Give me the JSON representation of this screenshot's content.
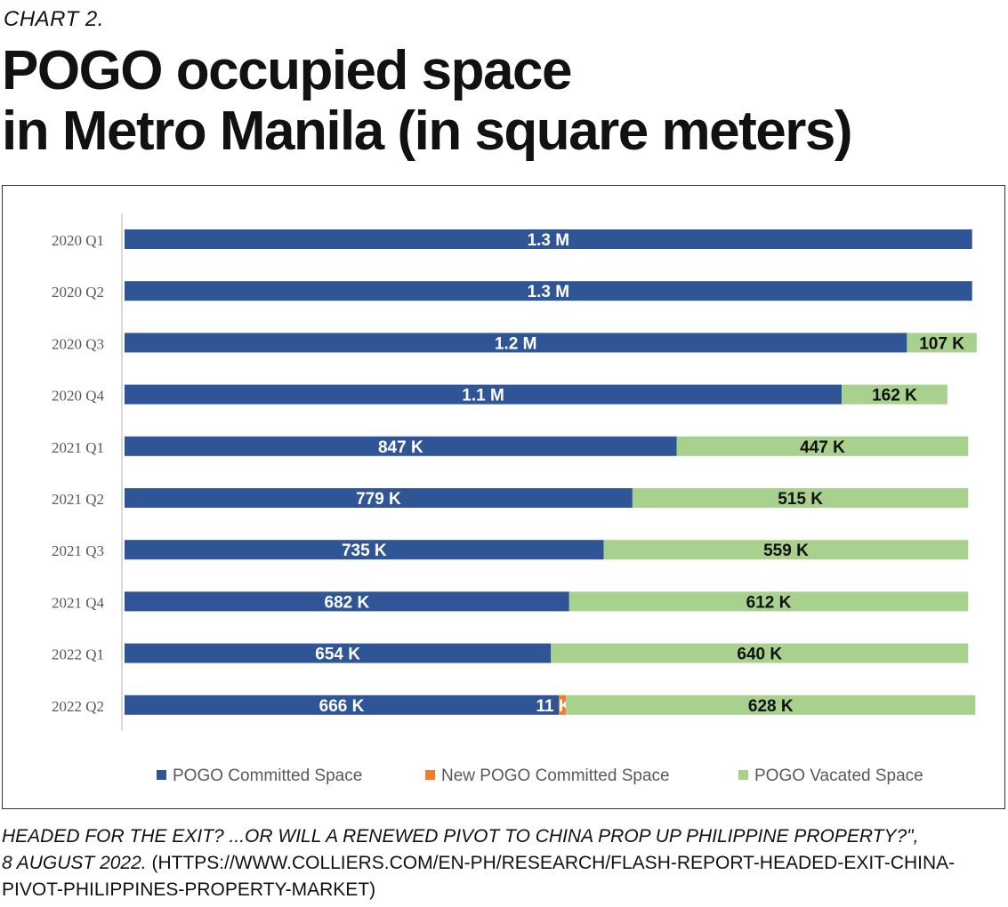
{
  "kicker": "CHART 2.",
  "title_line1": "POGO occupied space",
  "title_line2": "in Metro Manila (in square meters)",
  "source_line1": "HEADED FOR THE EXIT? ...OR WILL A RENEWED PIVOT TO CHINA PROP UP PHILIPPINE PROPERTY?\",",
  "source_line2_italic": "8 AUGUST 2022. ",
  "source_line2_rest": "(HTTPS://WWW.COLLIERS.COM/EN-PH/RESEARCH/FLASH-REPORT-HEADED-EXIT-CHINA-",
  "source_line3": "PIVOT-PHILIPPINES-PROPERTY-MARKET)",
  "chart_data": {
    "type": "bar",
    "orientation": "horizontal",
    "stacked": true,
    "title": "POGO occupied space in Metro Manila (in square meters)",
    "categories": [
      "2020 Q1",
      "2020 Q2",
      "2020 Q3",
      "2020 Q4",
      "2021 Q1",
      "2021 Q2",
      "2021 Q3",
      "2021 Q4",
      "2022 Q1",
      "2022 Q2"
    ],
    "series": [
      {
        "name": "POGO Committed Space",
        "color": "#2f5597",
        "values": [
          1300000,
          1300000,
          1200000,
          1100000,
          847000,
          779000,
          735000,
          682000,
          654000,
          666000
        ],
        "labels": [
          "1.3 M",
          "1.3 M",
          "1.2 M",
          "1.1 M",
          "847 K",
          "779 K",
          "735 K",
          "682 K",
          "654 K",
          "666 K"
        ]
      },
      {
        "name": "New POGO Committed Space",
        "color": "#ed7d31",
        "values": [
          0,
          0,
          0,
          0,
          0,
          0,
          0,
          0,
          0,
          11000
        ],
        "labels": [
          "",
          "",
          "",
          "",
          "",
          "",
          "",
          "",
          "",
          "11 K"
        ]
      },
      {
        "name": "POGO Vacated Space",
        "color": "#a9d18e",
        "values": [
          0,
          0,
          107000,
          162000,
          447000,
          515000,
          559000,
          612000,
          640000,
          628000
        ],
        "labels": [
          "",
          "",
          "107 K",
          "162 K",
          "447 K",
          "515 K",
          "559 K",
          "612 K",
          "640 K",
          "628 K"
        ]
      }
    ],
    "xlim": [
      0,
      1310000
    ],
    "legend_position": "bottom",
    "grid": false
  }
}
